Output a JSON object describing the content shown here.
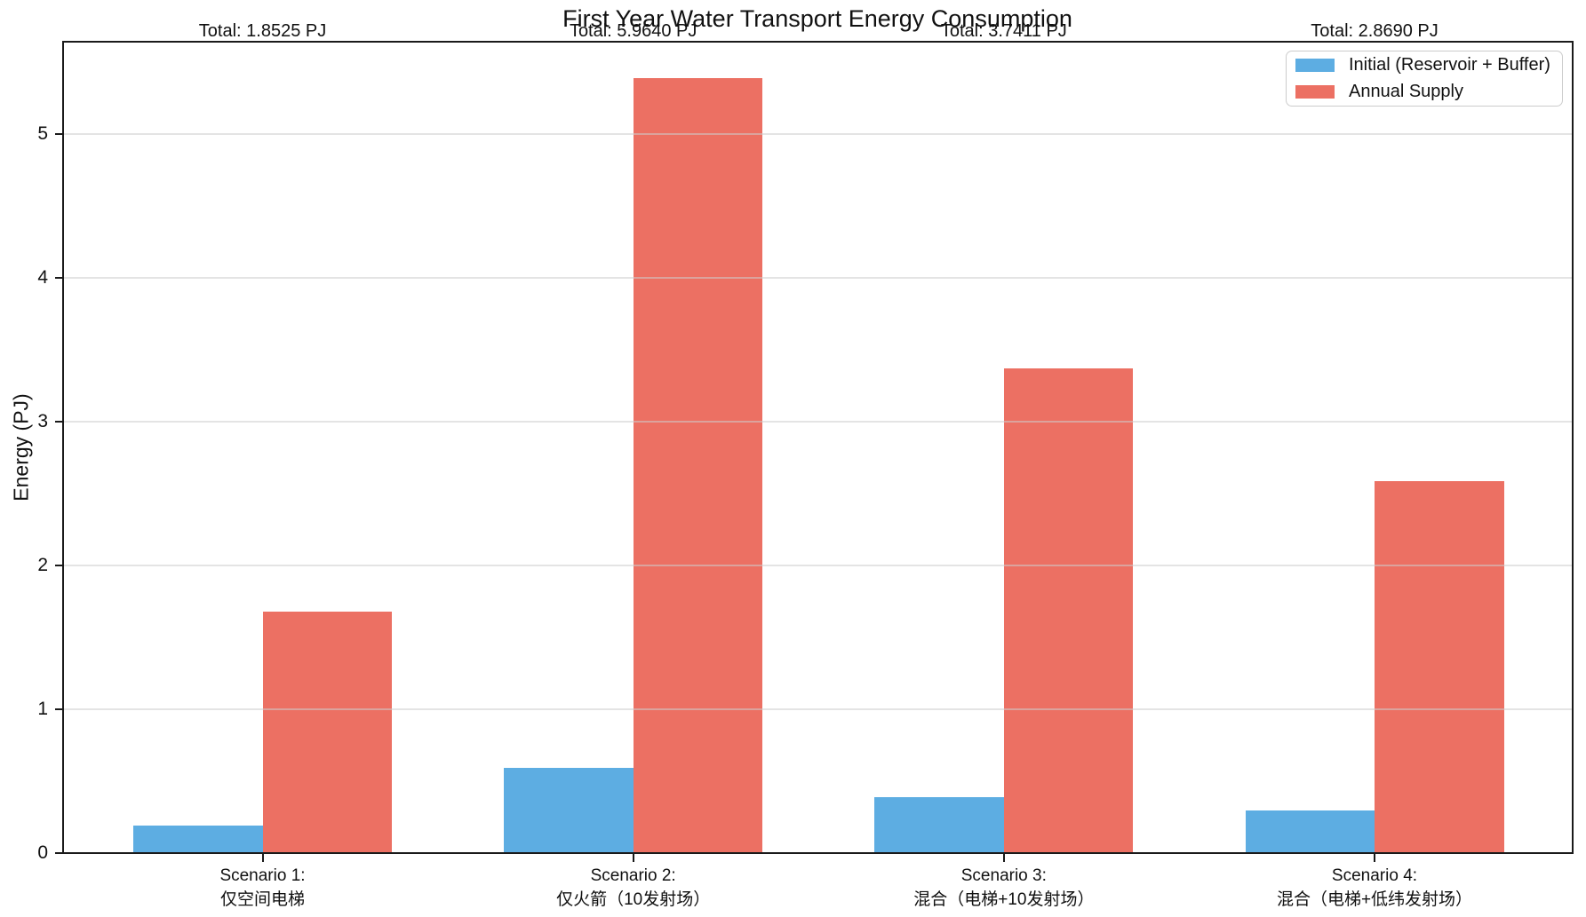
{
  "figure": {
    "title": "First Year Water Transport Energy Consumption",
    "ylabel": "Energy (PJ)"
  },
  "legend": {
    "items": [
      {
        "label": "Initial (Reservoir + Buffer)",
        "color": "#5DADE2"
      },
      {
        "label": "Annual Supply",
        "color": "#EC7063"
      }
    ]
  },
  "chart_data": {
    "type": "bar",
    "title": "First Year Water Transport Energy Consumption",
    "xlabel": "",
    "ylabel": "Energy (PJ)",
    "ylim": [
      0,
      5.64
    ],
    "yticks": [
      0,
      1,
      2,
      3,
      4,
      5
    ],
    "grid": true,
    "legend_position": "upper right",
    "categories": [
      {
        "line1": "Scenario 1:",
        "line2": "仅空间电梯"
      },
      {
        "line1": "Scenario 2:",
        "line2": "仅火箭（10发射场）"
      },
      {
        "line1": "Scenario 3:",
        "line2": "混合（电梯+10发射场）"
      },
      {
        "line1": "Scenario 4:",
        "line2": "混合（电梯+低纬发射场）"
      }
    ],
    "series": [
      {
        "name": "Initial (Reservoir + Buffer)",
        "color": "#5DADE2",
        "values": [
          0.1825,
          0.584,
          0.3811,
          0.289
        ]
      },
      {
        "name": "Annual Supply",
        "color": "#EC7063",
        "values": [
          1.67,
          5.38,
          3.36,
          2.58
        ]
      }
    ],
    "totals": [
      {
        "label": "Total: 1.8525 PJ",
        "value": 1.8525
      },
      {
        "label": "Total: 5.9640 PJ",
        "value": 5.964
      },
      {
        "label": "Total: 3.7411 PJ",
        "value": 3.7411
      },
      {
        "label": "Total: 2.8690 PJ",
        "value": 2.869
      }
    ]
  }
}
